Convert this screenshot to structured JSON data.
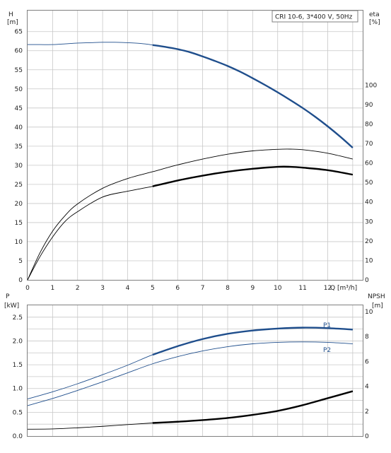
{
  "title": "CRI 10-6, 3*400 V, 50Hz",
  "top_chart": {
    "left_axis_label": "H",
    "left_axis_unit": "[m]",
    "right_axis_label": "eta",
    "right_axis_unit": "[%]",
    "x_axis_label": "Q [m³/h]"
  },
  "bottom_chart": {
    "left_axis_label": "P",
    "left_axis_unit": "[kW]",
    "right_axis_label": "NPSH",
    "right_axis_unit": "[m]"
  },
  "colors": {
    "head_curve": "#1f4e8c",
    "power_curve": "#1f4e8c",
    "eta_curve": "#000000",
    "npsh_curve": "#000000",
    "grid": "#c8c8c8",
    "frame": "#808080"
  },
  "chart_data": [
    {
      "type": "line",
      "title": "CRI 10-6, 3*400 V, 50Hz",
      "xlabel": "Q [m³/h]",
      "ylabel": "H [m]",
      "y2label": "eta [%]",
      "xlim": [
        0,
        13.4
      ],
      "ylim": [
        0,
        70.5
      ],
      "y2lim": [
        0,
        138.2
      ],
      "x_ticks": [
        0,
        1,
        2,
        3,
        4,
        5,
        6,
        7,
        8,
        9,
        10,
        11,
        12
      ],
      "y_ticks": [
        0,
        5,
        10,
        15,
        20,
        25,
        30,
        35,
        40,
        45,
        50,
        55,
        60,
        65
      ],
      "y2_ticks": [
        0,
        10,
        20,
        30,
        40,
        50,
        60,
        70,
        80,
        90,
        100
      ],
      "grid": true,
      "series": [
        {
          "name": "H",
          "axis": "left",
          "style": "thin-then-bold",
          "bold_from_x": 5,
          "x": [
            0,
            0.5,
            1,
            1.5,
            2,
            2.5,
            3,
            3.5,
            4,
            4.5,
            5,
            5.5,
            6,
            6.5,
            7,
            7.5,
            8,
            8.5,
            9,
            9.5,
            10,
            10.5,
            11,
            11.5,
            12,
            12.5,
            13
          ],
          "values": [
            61.6,
            61.6,
            61.6,
            61.8,
            62.0,
            62.1,
            62.2,
            62.2,
            62.1,
            61.9,
            61.5,
            61.0,
            60.4,
            59.6,
            58.5,
            57.3,
            56.0,
            54.5,
            52.8,
            51.0,
            49.1,
            47.1,
            45.0,
            42.7,
            40.2,
            37.5,
            34.6
          ]
        },
        {
          "name": "eta",
          "axis": "right",
          "style": "thin-then-bold",
          "bold_from_x": 5,
          "x": [
            0,
            0.5,
            1,
            1.5,
            2,
            3,
            4,
            5,
            6,
            7,
            8,
            9,
            10,
            10.5,
            11,
            12,
            13
          ],
          "values": [
            0,
            12,
            22,
            30,
            35,
            42.5,
            45.5,
            48,
            51,
            53.5,
            55.5,
            57,
            58,
            58,
            57.6,
            56.3,
            54
          ]
        },
        {
          "name": "eta-thin",
          "axis": "right",
          "style": "thin",
          "x": [
            0,
            0.5,
            1,
            1.5,
            2,
            3,
            4,
            5,
            6,
            7,
            8,
            9,
            10,
            10.5,
            11,
            12,
            13
          ],
          "values": [
            0,
            14,
            25,
            33,
            39,
            47,
            52,
            55.5,
            59,
            62,
            64.5,
            66.2,
            67,
            67.1,
            66.8,
            65,
            62
          ]
        }
      ]
    },
    {
      "type": "line",
      "ylabel": "P [kW]",
      "y2label": "NPSH [m]",
      "xlim": [
        0,
        13.4
      ],
      "ylim": [
        0,
        2.75
      ],
      "y2lim": [
        0,
        10.5
      ],
      "y_ticks": [
        0.0,
        0.5,
        1.0,
        1.5,
        2.0,
        2.5
      ],
      "y2_ticks": [
        0,
        2,
        4,
        6,
        8,
        10
      ],
      "grid": true,
      "series": [
        {
          "name": "P1",
          "axis": "left",
          "style": "thin-then-bold",
          "bold_from_x": 5,
          "x": [
            0,
            1,
            2,
            3,
            4,
            5,
            6,
            7,
            8,
            9,
            10,
            11,
            12,
            13
          ],
          "values": [
            0.78,
            0.93,
            1.1,
            1.29,
            1.49,
            1.71,
            1.89,
            2.04,
            2.15,
            2.22,
            2.26,
            2.28,
            2.27,
            2.24
          ]
        },
        {
          "name": "P2",
          "axis": "left",
          "style": "thin",
          "x": [
            0,
            1,
            2,
            3,
            4,
            5,
            6,
            7,
            8,
            9,
            10,
            11,
            12,
            13
          ],
          "values": [
            0.64,
            0.79,
            0.96,
            1.14,
            1.33,
            1.52,
            1.67,
            1.79,
            1.88,
            1.94,
            1.97,
            1.98,
            1.97,
            1.94
          ]
        },
        {
          "name": "NPSH",
          "axis": "right",
          "style": "thin-then-bold",
          "bold_from_x": 5,
          "x": [
            0,
            1,
            2,
            3,
            4,
            5,
            6,
            7,
            8,
            9,
            10,
            11,
            12,
            13
          ],
          "values": [
            0.55,
            0.57,
            0.66,
            0.78,
            0.92,
            1.05,
            1.15,
            1.28,
            1.45,
            1.7,
            2.02,
            2.48,
            3.04,
            3.6
          ]
        }
      ]
    }
  ]
}
